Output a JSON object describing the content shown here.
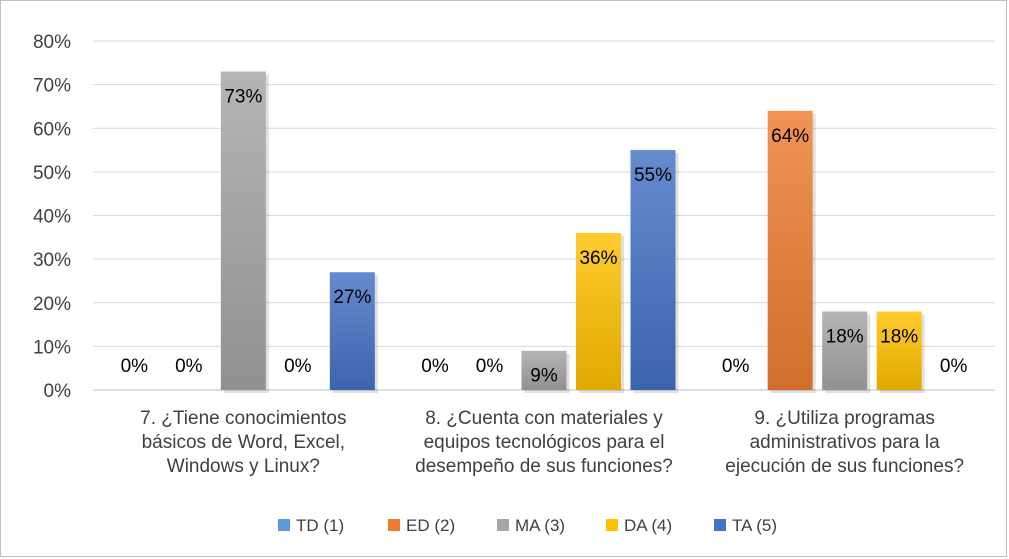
{
  "chart_data": {
    "type": "bar",
    "categories": [
      [
        "7. ¿Tiene conocimientos",
        "básicos de Word, Excel,",
        "Windows y Linux?"
      ],
      [
        "8. ¿Cuenta con materiales y",
        "equipos tecnológicos para el",
        "desempeño de sus funciones?"
      ],
      [
        "9. ¿Utiliza  programas",
        "administrativos para la",
        "ejecución de sus funciones?"
      ]
    ],
    "series": [
      {
        "name": "TD (1)",
        "color": "#5b9bd5",
        "values": [
          0,
          0,
          0
        ],
        "labels": [
          "0%",
          "0%",
          "0%"
        ]
      },
      {
        "name": "ED (2)",
        "color": "#ed7d31",
        "values": [
          0,
          0,
          64
        ],
        "labels": [
          "0%",
          "0%",
          "64%"
        ]
      },
      {
        "name": "MA (3)",
        "color": "#a5a5a5",
        "values": [
          73,
          9,
          18
        ],
        "labels": [
          "73%",
          "9%",
          "18%"
        ]
      },
      {
        "name": "DA (4)",
        "color": "#ffc000",
        "values": [
          0,
          36,
          18
        ],
        "labels": [
          "0%",
          "36%",
          "18%"
        ]
      },
      {
        "name": "TA (5)",
        "color": "#4472c4",
        "values": [
          27,
          55,
          0
        ],
        "labels": [
          "27%",
          "55%",
          "0%"
        ]
      }
    ],
    "yticks": [
      "0%",
      "10%",
      "20%",
      "30%",
      "40%",
      "50%",
      "60%",
      "70%",
      "80%"
    ],
    "ylim": [
      0,
      80
    ],
    "grid": true,
    "legend_position": "bottom",
    "title": "",
    "xlabel": "",
    "ylabel": ""
  }
}
